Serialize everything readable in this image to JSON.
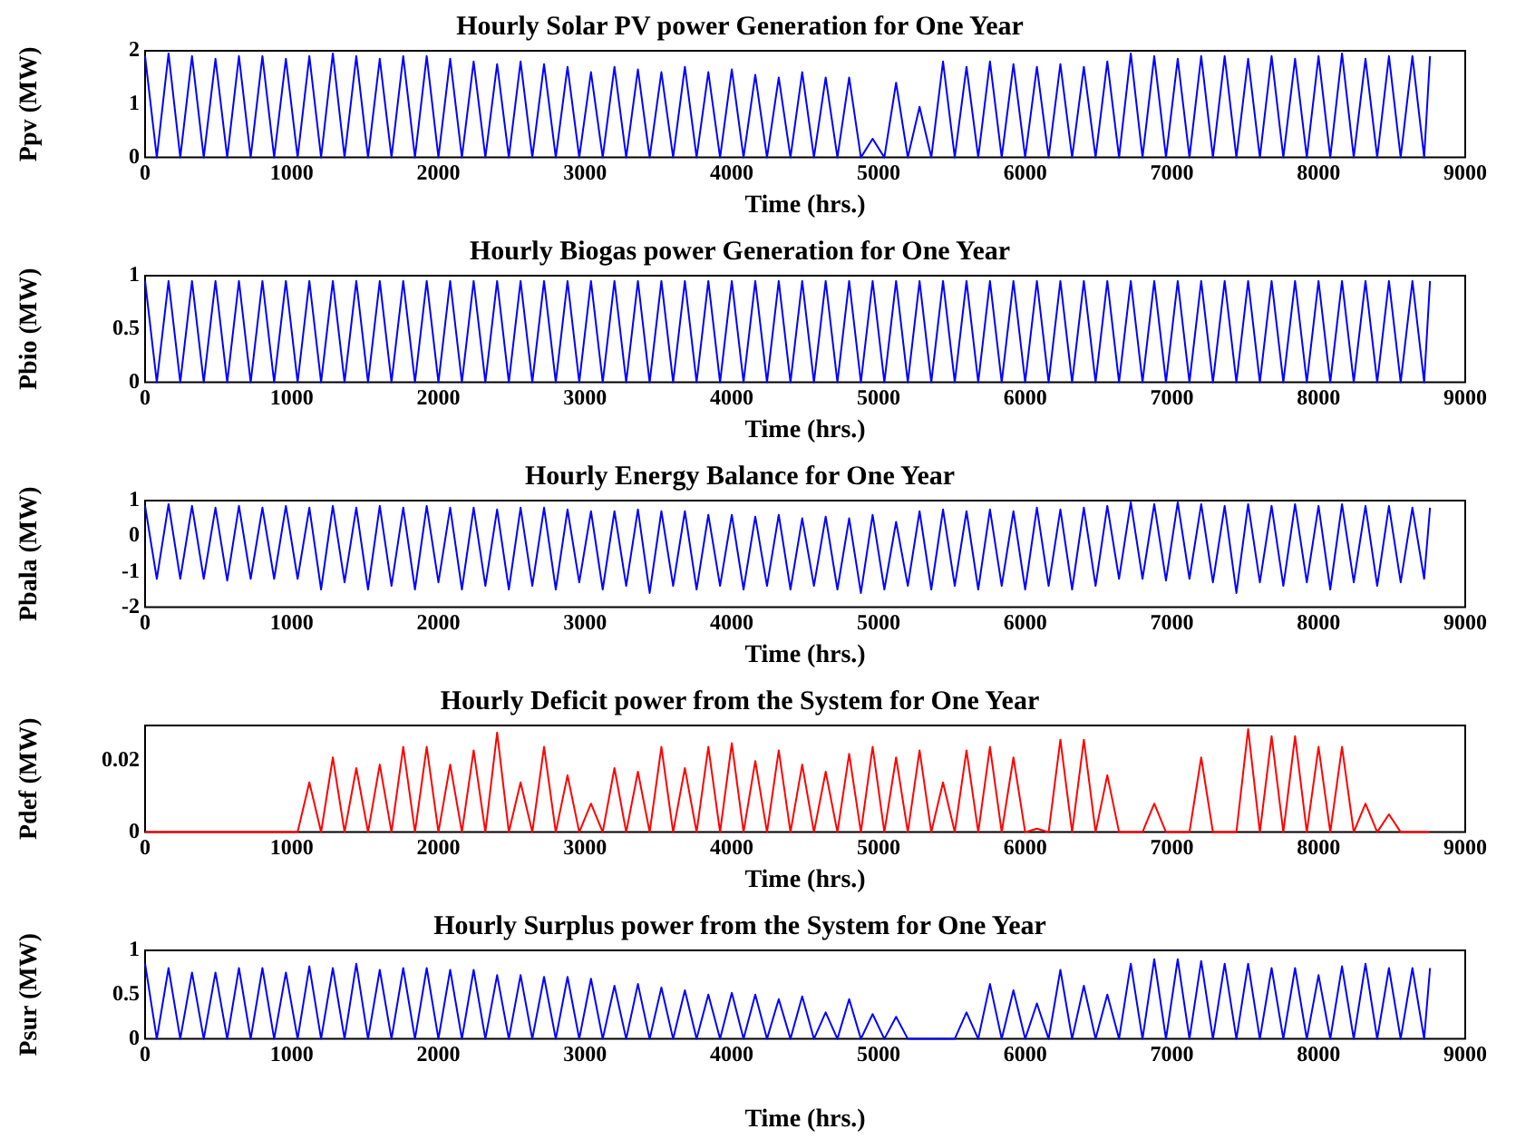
{
  "chart_data": [
    {
      "type": "line",
      "title": "Hourly Solar PV power Generation for One Year",
      "xlabel": "Time (hrs.)",
      "ylabel": "Ppv (MW)",
      "marker": "none",
      "xlim": [
        0,
        9000
      ],
      "xticks": [
        0,
        1000,
        2000,
        3000,
        4000,
        5000,
        6000,
        7000,
        8000,
        9000
      ],
      "ylim": [
        0,
        2
      ],
      "yticks": [
        0,
        1,
        2
      ],
      "x": [
        0,
        80,
        160,
        240,
        320,
        400,
        480,
        560,
        640,
        720,
        800,
        880,
        960,
        1040,
        1120,
        1200,
        1280,
        1360,
        1440,
        1520,
        1600,
        1680,
        1760,
        1840,
        1920,
        2000,
        2080,
        2160,
        2240,
        2320,
        2400,
        2480,
        2560,
        2640,
        2720,
        2800,
        2880,
        2960,
        3040,
        3120,
        3200,
        3280,
        3360,
        3440,
        3520,
        3600,
        3680,
        3760,
        3840,
        3920,
        4000,
        4080,
        4160,
        4240,
        4320,
        4400,
        4480,
        4560,
        4640,
        4720,
        4800,
        4880,
        4960,
        5040,
        5120,
        5200,
        5280,
        5360,
        5440,
        5520,
        5600,
        5680,
        5760,
        5840,
        5920,
        6000,
        6080,
        6160,
        6240,
        6320,
        6400,
        6480,
        6560,
        6640,
        6720,
        6800,
        6880,
        6960,
        7040,
        7120,
        7200,
        7280,
        7360,
        7440,
        7520,
        7600,
        7680,
        7760,
        7840,
        7920,
        8000,
        8080,
        8160,
        8240,
        8320,
        8400,
        8480,
        8560,
        8640,
        8720,
        8760
      ],
      "series": [
        {
          "color": "#0000ff",
          "values": [
            1.9,
            0,
            1.95,
            0,
            1.9,
            0,
            1.85,
            0,
            1.9,
            0,
            1.9,
            0,
            1.85,
            0,
            1.9,
            0,
            1.95,
            0,
            1.9,
            0,
            1.85,
            0,
            1.9,
            0,
            1.9,
            0,
            1.85,
            0,
            1.8,
            0,
            1.75,
            0,
            1.8,
            0,
            1.75,
            0,
            1.7,
            0,
            1.6,
            0,
            1.7,
            0,
            1.65,
            0,
            1.6,
            0,
            1.7,
            0,
            1.6,
            0,
            1.65,
            0,
            1.55,
            0,
            1.5,
            0,
            1.6,
            0,
            1.5,
            0,
            1.5,
            0,
            0.35,
            0,
            1.4,
            0,
            0.95,
            0,
            1.8,
            0,
            1.7,
            0,
            1.8,
            0,
            1.75,
            0,
            1.7,
            0,
            1.75,
            0,
            1.7,
            0,
            1.8,
            0,
            1.95,
            0,
            1.9,
            0,
            1.85,
            0,
            1.9,
            0,
            1.9,
            0,
            1.85,
            0,
            1.9,
            0,
            1.85,
            0,
            1.9,
            0,
            1.95,
            0,
            1.85,
            0,
            1.9,
            0,
            1.9,
            0,
            1.9
          ]
        }
      ]
    },
    {
      "type": "line",
      "title": "Hourly Biogas power Generation for One Year",
      "xlabel": "Time (hrs.)",
      "ylabel": "Pbio (MW)",
      "marker": "none",
      "xlim": [
        0,
        9000
      ],
      "xticks": [
        0,
        1000,
        2000,
        3000,
        4000,
        5000,
        6000,
        7000,
        8000,
        9000
      ],
      "ylim": [
        0,
        1
      ],
      "yticks": [
        0,
        0.5,
        1
      ],
      "x": [
        0,
        80,
        160,
        240,
        320,
        400,
        480,
        560,
        640,
        720,
        800,
        880,
        960,
        1040,
        1120,
        1200,
        1280,
        1360,
        1440,
        1520,
        1600,
        1680,
        1760,
        1840,
        1920,
        2000,
        2080,
        2160,
        2240,
        2320,
        2400,
        2480,
        2560,
        2640,
        2720,
        2800,
        2880,
        2960,
        3040,
        3120,
        3200,
        3280,
        3360,
        3440,
        3520,
        3600,
        3680,
        3760,
        3840,
        3920,
        4000,
        4080,
        4160,
        4240,
        4320,
        4400,
        4480,
        4560,
        4640,
        4720,
        4800,
        4880,
        4960,
        5040,
        5120,
        5200,
        5280,
        5360,
        5440,
        5520,
        5600,
        5680,
        5760,
        5840,
        5920,
        6000,
        6080,
        6160,
        6240,
        6320,
        6400,
        6480,
        6560,
        6640,
        6720,
        6800,
        6880,
        6960,
        7040,
        7120,
        7200,
        7280,
        7360,
        7440,
        7520,
        7600,
        7680,
        7760,
        7840,
        7920,
        8000,
        8080,
        8160,
        8240,
        8320,
        8400,
        8480,
        8560,
        8640,
        8720,
        8760
      ],
      "series": [
        {
          "color": "#0000ff",
          "values": [
            0.95,
            0,
            0.95,
            0,
            0.95,
            0,
            0.95,
            0,
            0.95,
            0,
            0.95,
            0,
            0.95,
            0,
            0.95,
            0,
            0.95,
            0,
            0.95,
            0,
            0.95,
            0,
            0.95,
            0,
            0.95,
            0,
            0.95,
            0,
            0.95,
            0,
            0.95,
            0,
            0.95,
            0,
            0.95,
            0,
            0.95,
            0,
            0.95,
            0,
            0.95,
            0,
            0.95,
            0,
            0.95,
            0,
            0.95,
            0,
            0.95,
            0,
            0.95,
            0,
            0.95,
            0,
            0.95,
            0,
            0.95,
            0,
            0.95,
            0,
            0.95,
            0,
            0.95,
            0,
            0.95,
            0,
            0.95,
            0,
            0.95,
            0,
            0.95,
            0,
            0.95,
            0,
            0.95,
            0,
            0.95,
            0,
            0.95,
            0,
            0.95,
            0,
            0.95,
            0,
            0.95,
            0,
            0.95,
            0,
            0.95,
            0,
            0.95,
            0,
            0.95,
            0,
            0.95,
            0,
            0.95,
            0,
            0.95,
            0,
            0.95,
            0,
            0.95,
            0,
            0.95,
            0,
            0.95,
            0,
            0.95,
            0,
            0.95
          ]
        }
      ]
    },
    {
      "type": "line",
      "title": "Hourly Energy Balance for One Year",
      "xlabel": "Time (hrs.)",
      "ylabel": "Pbala (MW)",
      "marker": "none",
      "xlim": [
        0,
        9000
      ],
      "xticks": [
        0,
        1000,
        2000,
        3000,
        4000,
        5000,
        6000,
        7000,
        8000,
        9000
      ],
      "ylim": [
        -2,
        1
      ],
      "yticks": [
        -2,
        -1,
        0,
        1
      ],
      "x": [
        0,
        80,
        160,
        240,
        320,
        400,
        480,
        560,
        640,
        720,
        800,
        880,
        960,
        1040,
        1120,
        1200,
        1280,
        1360,
        1440,
        1520,
        1600,
        1680,
        1760,
        1840,
        1920,
        2000,
        2080,
        2160,
        2240,
        2320,
        2400,
        2480,
        2560,
        2640,
        2720,
        2800,
        2880,
        2960,
        3040,
        3120,
        3200,
        3280,
        3360,
        3440,
        3520,
        3600,
        3680,
        3760,
        3840,
        3920,
        4000,
        4080,
        4160,
        4240,
        4320,
        4400,
        4480,
        4560,
        4640,
        4720,
        4800,
        4880,
        4960,
        5040,
        5120,
        5200,
        5280,
        5360,
        5440,
        5520,
        5600,
        5680,
        5760,
        5840,
        5920,
        6000,
        6080,
        6160,
        6240,
        6320,
        6400,
        6480,
        6560,
        6640,
        6720,
        6800,
        6880,
        6960,
        7040,
        7120,
        7200,
        7280,
        7360,
        7440,
        7520,
        7600,
        7680,
        7760,
        7840,
        7920,
        8000,
        8080,
        8160,
        8240,
        8320,
        8400,
        8480,
        8560,
        8640,
        8720,
        8760
      ],
      "series": [
        {
          "color": "#0000ff",
          "values": [
            0.85,
            -1.2,
            0.9,
            -1.2,
            0.85,
            -1.2,
            0.8,
            -1.25,
            0.85,
            -1.2,
            0.8,
            -1.2,
            0.85,
            -1.2,
            0.8,
            -1.5,
            0.85,
            -1.3,
            0.8,
            -1.5,
            0.85,
            -1.4,
            0.8,
            -1.5,
            0.85,
            -1.3,
            0.8,
            -1.5,
            0.8,
            -1.4,
            0.75,
            -1.5,
            0.8,
            -1.4,
            0.8,
            -1.5,
            0.75,
            -1.3,
            0.7,
            -1.5,
            0.7,
            -1.4,
            0.75,
            -1.6,
            0.7,
            -1.4,
            0.7,
            -1.5,
            0.6,
            -1.4,
            0.6,
            -1.5,
            0.55,
            -1.4,
            0.6,
            -1.5,
            0.5,
            -1.4,
            0.55,
            -1.5,
            0.5,
            -1.6,
            0.6,
            -1.5,
            0.4,
            -1.4,
            0.7,
            -1.5,
            0.75,
            -1.4,
            0.7,
            -1.5,
            0.75,
            -1.4,
            0.7,
            -1.5,
            0.8,
            -1.4,
            0.75,
            -1.5,
            0.8,
            -1.4,
            0.85,
            -1.2,
            0.95,
            -1.2,
            0.9,
            -1.25,
            0.95,
            -1.2,
            0.9,
            -1.3,
            0.85,
            -1.6,
            0.9,
            -1.3,
            0.85,
            -1.4,
            0.9,
            -1.3,
            0.85,
            -1.5,
            0.9,
            -1.3,
            0.85,
            -1.4,
            0.85,
            -1.3,
            0.8,
            -1.2,
            0.8
          ]
        }
      ]
    },
    {
      "type": "line",
      "title": "Hourly Deficit power from the System for One Year",
      "xlabel": "Time (hrs.)",
      "ylabel": "Pdef (MW)",
      "marker": "none",
      "xlim": [
        0,
        9000
      ],
      "xticks": [
        0,
        1000,
        2000,
        3000,
        4000,
        5000,
        6000,
        7000,
        8000,
        9000
      ],
      "ylim": [
        0,
        0.03
      ],
      "yticks": [
        0,
        0.02
      ],
      "x": [
        0,
        80,
        160,
        240,
        320,
        400,
        480,
        560,
        640,
        720,
        800,
        880,
        960,
        1040,
        1120,
        1200,
        1280,
        1360,
        1440,
        1520,
        1600,
        1680,
        1760,
        1840,
        1920,
        2000,
        2080,
        2160,
        2240,
        2320,
        2400,
        2480,
        2560,
        2640,
        2720,
        2800,
        2880,
        2960,
        3040,
        3120,
        3200,
        3280,
        3360,
        3440,
        3520,
        3600,
        3680,
        3760,
        3840,
        3920,
        4000,
        4080,
        4160,
        4240,
        4320,
        4400,
        4480,
        4560,
        4640,
        4720,
        4800,
        4880,
        4960,
        5040,
        5120,
        5200,
        5280,
        5360,
        5440,
        5520,
        5600,
        5680,
        5760,
        5840,
        5920,
        6000,
        6080,
        6160,
        6240,
        6320,
        6400,
        6480,
        6560,
        6640,
        6720,
        6800,
        6880,
        6960,
        7040,
        7120,
        7200,
        7280,
        7360,
        7440,
        7520,
        7600,
        7680,
        7760,
        7840,
        7920,
        8000,
        8080,
        8160,
        8240,
        8320,
        8400,
        8480,
        8560,
        8640,
        8720,
        8760
      ],
      "series": [
        {
          "color": "#ff0000",
          "values": [
            0,
            0,
            0,
            0,
            0,
            0,
            0,
            0,
            0,
            0,
            0,
            0,
            0,
            0,
            0.014,
            0,
            0.021,
            0,
            0.018,
            0,
            0.019,
            0,
            0.024,
            0,
            0.024,
            0,
            0.019,
            0,
            0.023,
            0,
            0.028,
            0,
            0.014,
            0,
            0.024,
            0,
            0.016,
            0,
            0.008,
            0,
            0.018,
            0,
            0.017,
            0,
            0.024,
            0,
            0.018,
            0,
            0.024,
            0,
            0.025,
            0,
            0.02,
            0,
            0.023,
            0,
            0.019,
            0,
            0.017,
            0,
            0.022,
            0,
            0.024,
            0,
            0.021,
            0,
            0.023,
            0,
            0.014,
            0,
            0.023,
            0,
            0.024,
            0,
            0.021,
            0,
            0.001,
            0,
            0.026,
            0,
            0.026,
            0,
            0.016,
            0,
            0,
            0,
            0.008,
            0,
            0,
            0,
            0.021,
            0,
            0,
            0,
            0.029,
            0,
            0.027,
            0,
            0.027,
            0,
            0.024,
            0,
            0.024,
            0,
            0.008,
            0,
            0.005,
            0,
            0,
            0,
            0
          ]
        }
      ]
    },
    {
      "type": "line",
      "title": "Hourly Surplus power from the System for One Year",
      "xlabel": "Time (hrs.)",
      "ylabel": "Psur (MW)",
      "marker": "none",
      "xlim": [
        0,
        9000
      ],
      "xticks": [
        0,
        1000,
        2000,
        3000,
        4000,
        5000,
        6000,
        7000,
        8000,
        9000
      ],
      "ylim": [
        0,
        1
      ],
      "yticks": [
        0,
        0.5,
        1
      ],
      "x": [
        0,
        80,
        160,
        240,
        320,
        400,
        480,
        560,
        640,
        720,
        800,
        880,
        960,
        1040,
        1120,
        1200,
        1280,
        1360,
        1440,
        1520,
        1600,
        1680,
        1760,
        1840,
        1920,
        2000,
        2080,
        2160,
        2240,
        2320,
        2400,
        2480,
        2560,
        2640,
        2720,
        2800,
        2880,
        2960,
        3040,
        3120,
        3200,
        3280,
        3360,
        3440,
        3520,
        3600,
        3680,
        3760,
        3840,
        3920,
        4000,
        4080,
        4160,
        4240,
        4320,
        4400,
        4480,
        4560,
        4640,
        4720,
        4800,
        4880,
        4960,
        5040,
        5120,
        5200,
        5280,
        5360,
        5440,
        5520,
        5600,
        5680,
        5760,
        5840,
        5920,
        6000,
        6080,
        6160,
        6240,
        6320,
        6400,
        6480,
        6560,
        6640,
        6720,
        6800,
        6880,
        6960,
        7040,
        7120,
        7200,
        7280,
        7360,
        7440,
        7520,
        7600,
        7680,
        7760,
        7840,
        7920,
        8000,
        8080,
        8160,
        8240,
        8320,
        8400,
        8480,
        8560,
        8640,
        8720,
        8760
      ],
      "series": [
        {
          "color": "#0000ff",
          "values": [
            0.85,
            0,
            0.8,
            0,
            0.75,
            0,
            0.75,
            0,
            0.8,
            0,
            0.8,
            0,
            0.75,
            0,
            0.82,
            0,
            0.8,
            0,
            0.85,
            0,
            0.78,
            0,
            0.8,
            0,
            0.8,
            0,
            0.78,
            0,
            0.78,
            0,
            0.72,
            0,
            0.72,
            0,
            0.7,
            0,
            0.7,
            0,
            0.68,
            0,
            0.6,
            0,
            0.62,
            0,
            0.58,
            0,
            0.55,
            0,
            0.5,
            0,
            0.52,
            0,
            0.5,
            0,
            0.45,
            0,
            0.48,
            0,
            0.3,
            0,
            0.45,
            0,
            0.28,
            0,
            0.25,
            0,
            0,
            0,
            0,
            0,
            0.3,
            0,
            0.62,
            0,
            0.55,
            0,
            0.4,
            0,
            0.78,
            0,
            0.6,
            0,
            0.5,
            0,
            0.85,
            0,
            0.9,
            0,
            0.9,
            0,
            0.88,
            0,
            0.85,
            0,
            0.85,
            0,
            0.8,
            0,
            0.8,
            0,
            0.72,
            0,
            0.82,
            0,
            0.85,
            0,
            0.8,
            0,
            0.8,
            0,
            0.8
          ]
        }
      ]
    }
  ]
}
